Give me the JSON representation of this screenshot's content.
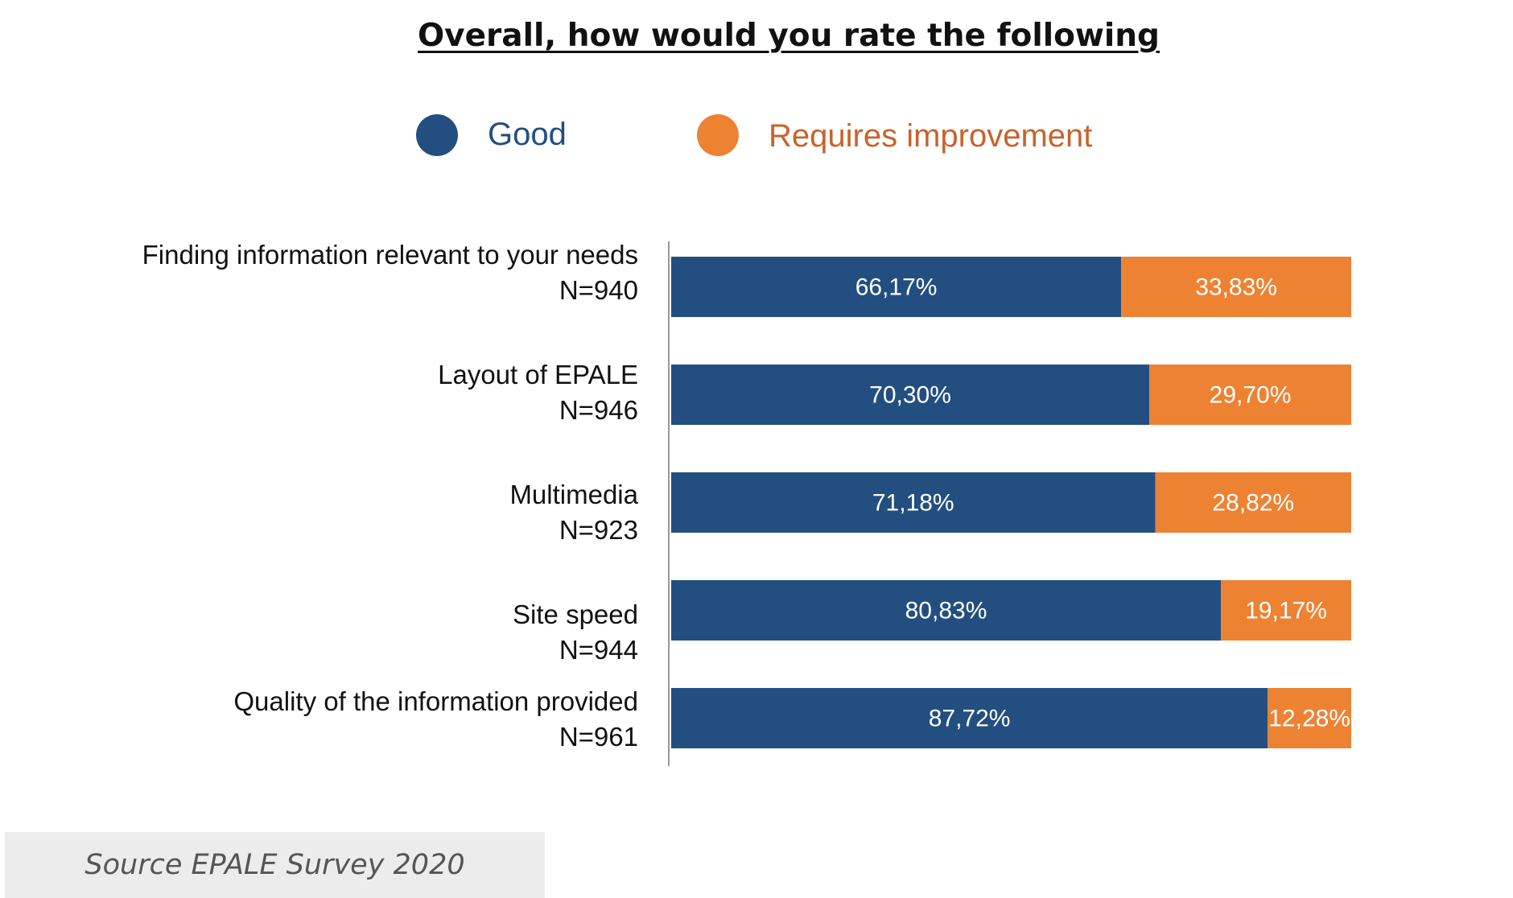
{
  "chart_data": {
    "type": "bar",
    "stacked": true,
    "orientation": "horizontal",
    "title": "Overall, how would you rate the following",
    "categories": [
      {
        "label": "Finding information relevant to your needs",
        "n": "N=940"
      },
      {
        "label": "Layout of EPALE",
        "n": "N=946"
      },
      {
        "label": "Multimedia",
        "n": "N=923"
      },
      {
        "label": "Site speed",
        "n": "N=944"
      },
      {
        "label": "Quality of the information provided",
        "n": "N=961"
      }
    ],
    "series": [
      {
        "name": "Good",
        "color": "#234f80",
        "values": [
          66.17,
          70.3,
          71.18,
          80.83,
          87.72
        ],
        "labels": [
          "66,17%",
          "70,30%",
          "71,18%",
          "80,83%",
          "87,72%"
        ]
      },
      {
        "name": "Requires improvement",
        "color": "#ed8233",
        "values": [
          33.83,
          29.7,
          28.82,
          19.17,
          12.28
        ],
        "labels": [
          "33,83%",
          "29,70%",
          "28,82%",
          "19,17%",
          "12,28%"
        ]
      }
    ],
    "xlim": [
      0,
      100
    ],
    "legend": "top-center"
  },
  "legend_text_colors": {
    "good": "#234f80",
    "improvement": "#c8632a"
  },
  "source": "Source EPALE Survey 2020"
}
